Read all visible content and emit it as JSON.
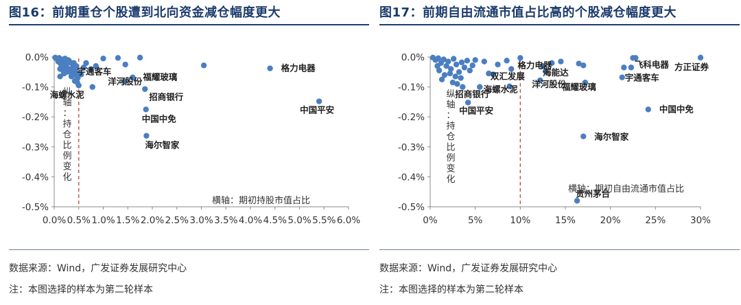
{
  "figures": [
    {
      "id": "left",
      "title": "图16：前期重仓个股遭到北向资金减仓幅度更大",
      "source": "数据来源：Wind，广发证券发展研究中心",
      "note": "注：本图选择的样本为第二轮样本",
      "colors": {
        "point": "#4a7fc1",
        "refline": "#c0504d",
        "axis": "#888888"
      },
      "chart_data": {
        "type": "scatter",
        "title": "",
        "xlabel": "横轴：期初持股市值占比",
        "ylabel": "纵轴：持仓比例变化",
        "xlim": [
          0,
          6
        ],
        "ylim": [
          -0.5,
          0
        ],
        "x_unit": "%",
        "y_unit": "%",
        "x_ticks": [
          0,
          0.5,
          1,
          1.5,
          2,
          2.5,
          3,
          3.5,
          4,
          4.5,
          5,
          5.5,
          6
        ],
        "y_ticks": [
          0,
          -0.1,
          -0.2,
          -0.3,
          -0.4,
          -0.5
        ],
        "x_tick_labels": [
          "0.0%",
          "0.5%",
          "1.0%",
          "1.5%",
          "2.0%",
          "2.5%",
          "3.0%",
          "3.5%",
          "4.0%",
          "4.5%",
          "5.0%",
          "5.5%",
          "6.0%"
        ],
        "y_tick_labels": [
          "0.0%",
          "-0.1%",
          "-0.2%",
          "-0.3%",
          "-0.4%",
          "-0.5%"
        ],
        "reference_line_x": 0.5,
        "points": [
          {
            "x": 0.02,
            "y": -0.002
          },
          {
            "x": 0.05,
            "y": -0.005
          },
          {
            "x": 0.08,
            "y": -0.01
          },
          {
            "x": 0.1,
            "y": -0.003
          },
          {
            "x": 0.12,
            "y": -0.02
          },
          {
            "x": 0.15,
            "y": -0.008
          },
          {
            "x": 0.18,
            "y": -0.015
          },
          {
            "x": 0.2,
            "y": -0.03
          },
          {
            "x": 0.22,
            "y": -0.005
          },
          {
            "x": 0.25,
            "y": -0.025
          },
          {
            "x": 0.28,
            "y": -0.04
          },
          {
            "x": 0.3,
            "y": -0.012
          },
          {
            "x": 0.32,
            "y": -0.05
          },
          {
            "x": 0.35,
            "y": -0.02
          },
          {
            "x": 0.38,
            "y": -0.035
          },
          {
            "x": 0.4,
            "y": -0.06
          },
          {
            "x": 0.42,
            "y": -0.045
          },
          {
            "x": 0.45,
            "y": -0.03
          },
          {
            "x": 0.48,
            "y": -0.07
          },
          {
            "x": 0.5,
            "y": -0.055
          },
          {
            "x": 0.12,
            "y": -0.04
          },
          {
            "x": 0.2,
            "y": -0.055
          },
          {
            "x": 0.28,
            "y": -0.01
          },
          {
            "x": 0.35,
            "y": -0.065
          },
          {
            "x": 0.42,
            "y": -0.08
          },
          {
            "x": 0.47,
            "y": -0.085
          },
          {
            "x": 0.15,
            "y": -0.03
          },
          {
            "x": 0.25,
            "y": -0.05
          },
          {
            "x": 0.3,
            "y": -0.04
          },
          {
            "x": 0.4,
            "y": -0.02
          },
          {
            "x": 0.08,
            "y": -0.015
          },
          {
            "x": 0.18,
            "y": -0.045
          },
          {
            "x": 0.6,
            "y": -0.035
          },
          {
            "x": 0.65,
            "y": -0.02
          },
          {
            "x": 0.75,
            "y": -0.04
          },
          {
            "x": 0.85,
            "y": -0.03
          },
          {
            "x": 1.0,
            "y": -0.005
          },
          {
            "x": 1.3,
            "y": -0.003
          },
          {
            "x": 1.45,
            "y": -0.025
          },
          {
            "x": 1.75,
            "y": -0.002
          },
          {
            "x": 3.05,
            "y": -0.028
          },
          {
            "x": 0.5,
            "y": -0.095
          },
          {
            "x": 0.12,
            "y": -0.065
          }
        ],
        "labeled_points": [
          {
            "name": "格力电器",
            "x": 4.4,
            "y": -0.038
          },
          {
            "name": "中国平安",
            "x": 5.4,
            "y": -0.148
          },
          {
            "name": "宇通客车",
            "x": 0.55,
            "y": -0.058
          },
          {
            "name": "福耀玻璃",
            "x": 1.6,
            "y": -0.068
          },
          {
            "name": "洋河股份",
            "x": 1.43,
            "y": -0.082
          },
          {
            "name": "海螺水泥",
            "x": 0.78,
            "y": -0.1
          },
          {
            "name": "招商银行",
            "x": 1.85,
            "y": -0.107
          },
          {
            "name": "中国中免",
            "x": 1.87,
            "y": -0.175
          },
          {
            "name": "海尔智家",
            "x": 1.88,
            "y": -0.263
          }
        ]
      }
    },
    {
      "id": "right",
      "title": "图17：前期自由流通市值占比高的个股减仓幅度更大",
      "source": "数据来源：Wind，广发证券发展研究中心",
      "note": "注：本图选择的样本为第二轮样本",
      "colors": {
        "point": "#4a7fc1",
        "refline": "#c0504d",
        "axis": "#888888"
      },
      "chart_data": {
        "type": "scatter",
        "title": "",
        "xlabel": "横轴：期初自由流通市值占比",
        "ylabel": "纵轴：持仓比例变化",
        "xlim": [
          0,
          30
        ],
        "ylim": [
          -0.5,
          0
        ],
        "x_unit": "%",
        "y_unit": "%",
        "x_ticks": [
          0,
          5,
          10,
          15,
          20,
          25,
          30
        ],
        "y_ticks": [
          0,
          -0.1,
          -0.2,
          -0.3,
          -0.4,
          -0.5
        ],
        "x_tick_labels": [
          "0%",
          "5%",
          "10%",
          "15%",
          "20%",
          "25%",
          "30%"
        ],
        "y_tick_labels": [
          "0.0%",
          "-0.1%",
          "-0.2%",
          "-0.3%",
          "-0.4%",
          "-0.5%"
        ],
        "reference_line_x": 10,
        "points": [
          {
            "x": 0.3,
            "y": -0.002
          },
          {
            "x": 0.6,
            "y": -0.01
          },
          {
            "x": 0.9,
            "y": -0.004
          },
          {
            "x": 1.2,
            "y": -0.02
          },
          {
            "x": 1.5,
            "y": -0.008
          },
          {
            "x": 1.8,
            "y": -0.03
          },
          {
            "x": 2.0,
            "y": -0.015
          },
          {
            "x": 2.3,
            "y": -0.04
          },
          {
            "x": 2.6,
            "y": -0.006
          },
          {
            "x": 2.9,
            "y": -0.025
          },
          {
            "x": 3.2,
            "y": -0.05
          },
          {
            "x": 3.5,
            "y": -0.018
          },
          {
            "x": 3.8,
            "y": -0.035
          },
          {
            "x": 4.1,
            "y": -0.012
          },
          {
            "x": 4.4,
            "y": -0.045
          },
          {
            "x": 4.7,
            "y": -0.028
          },
          {
            "x": 5.0,
            "y": -0.01
          },
          {
            "x": 1.0,
            "y": -0.045
          },
          {
            "x": 1.6,
            "y": -0.06
          },
          {
            "x": 2.2,
            "y": -0.055
          },
          {
            "x": 2.8,
            "y": -0.065
          },
          {
            "x": 3.4,
            "y": -0.07
          },
          {
            "x": 1.3,
            "y": -0.075
          },
          {
            "x": 2.5,
            "y": -0.085
          },
          {
            "x": 3.0,
            "y": -0.09
          },
          {
            "x": 0.8,
            "y": -0.03
          },
          {
            "x": 6.0,
            "y": -0.015
          },
          {
            "x": 7.5,
            "y": -0.025
          },
          {
            "x": 8.5,
            "y": -0.012
          },
          {
            "x": 9.0,
            "y": -0.04
          },
          {
            "x": 6.5,
            "y": -0.055
          },
          {
            "x": 12.5,
            "y": -0.03
          },
          {
            "x": 13.5,
            "y": -0.02
          },
          {
            "x": 14.5,
            "y": -0.015
          },
          {
            "x": 16.5,
            "y": -0.022
          },
          {
            "x": 17.0,
            "y": -0.028
          },
          {
            "x": 22.5,
            "y": -0.003
          },
          {
            "x": 22.8,
            "y": -0.003
          },
          {
            "x": 21.5,
            "y": -0.035
          },
          {
            "x": 3.6,
            "y": -0.1
          }
        ],
        "labeled_points": [
          {
            "name": "格力电器",
            "x": 10.0,
            "y": -0.003
          },
          {
            "name": "方正证券",
            "x": 30.0,
            "y": -0.002
          },
          {
            "name": "飞科电器",
            "x": 22.3,
            "y": -0.035
          },
          {
            "name": "宇通客车",
            "x": 21.3,
            "y": -0.068
          },
          {
            "name": "海能达",
            "x": 12.8,
            "y": -0.048
          },
          {
            "name": "洋河股份",
            "x": 12.2,
            "y": -0.078
          },
          {
            "name": "福耀玻璃",
            "x": 17.2,
            "y": -0.085
          },
          {
            "name": "双汇发展",
            "x": 7.0,
            "y": -0.058
          },
          {
            "name": "海螺水泥",
            "x": 8.8,
            "y": -0.098
          },
          {
            "name": "招商银行",
            "x": 5.5,
            "y": -0.1
          },
          {
            "name": "中国平安",
            "x": 4.2,
            "y": -0.152
          },
          {
            "name": "中国中免",
            "x": 24.2,
            "y": -0.175
          },
          {
            "name": "海尔智家",
            "x": 17.0,
            "y": -0.265
          },
          {
            "name": "贵州茅台",
            "x": 16.3,
            "y": -0.48
          }
        ]
      }
    }
  ]
}
